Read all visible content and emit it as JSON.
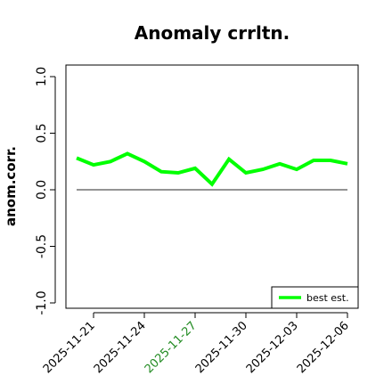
{
  "chart_data": {
    "type": "line",
    "title": "Anomaly crrltn.",
    "xlabel": "",
    "ylabel": "anom.corr.",
    "ylim": [
      -1.0,
      1.0
    ],
    "yticks": [
      "-1.0",
      "-0.5",
      "0.0",
      "0.5",
      "1.0"
    ],
    "xtick_labels": [
      "2025-11-21",
      "2025-11-24",
      "2025-11-27",
      "2025-11-30",
      "2025-12-03",
      "2025-12-06"
    ],
    "highlighted_xtick": "2025-11-27",
    "highlight_color": "#228B22",
    "x": [
      "2025-11-20",
      "2025-11-21",
      "2025-11-22",
      "2025-11-23",
      "2025-11-24",
      "2025-11-25",
      "2025-11-26",
      "2025-11-27",
      "2025-11-28",
      "2025-11-29",
      "2025-11-30",
      "2025-12-01",
      "2025-12-02",
      "2025-12-03",
      "2025-12-04",
      "2025-12-05",
      "2025-12-06"
    ],
    "series": [
      {
        "name": "best est.",
        "color": "#00ff00",
        "values": [
          0.28,
          0.22,
          0.25,
          0.32,
          0.25,
          0.16,
          0.15,
          0.19,
          0.05,
          0.27,
          0.15,
          0.18,
          0.23,
          0.18,
          0.26,
          0.26,
          0.23
        ]
      }
    ],
    "reference_line": {
      "y": 0.0,
      "color": "#555555"
    },
    "legend": {
      "placement": "bottom-right"
    },
    "grid": false
  }
}
